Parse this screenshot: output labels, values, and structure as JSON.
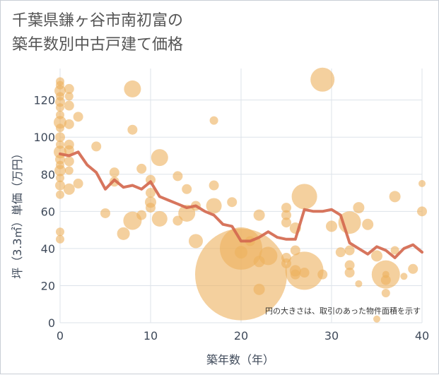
{
  "title_lines": [
    "千葉県鎌ヶ谷市南初富の",
    "築年数別中古戸建て価格"
  ],
  "note": "円の大きさは、取引のあった物件面積を示す",
  "chart_data": {
    "type": "scatter",
    "xlabel": "築年数（年）",
    "ylabel": "坪（3.3㎡）単価（万円）",
    "xlim": [
      0,
      40
    ],
    "ylim": [
      0,
      137
    ],
    "xticks": [
      0,
      10,
      20,
      30,
      40
    ],
    "yticks": [
      0,
      20,
      40,
      60,
      80,
      100,
      120
    ],
    "grid": true,
    "size_encoding": "物件面積",
    "series": [
      {
        "kind": "bubbles",
        "points": [
          {
            "x": 0,
            "y": 130,
            "s": 6
          },
          {
            "x": 0,
            "y": 128,
            "s": 6
          },
          {
            "x": 0,
            "y": 125,
            "s": 8
          },
          {
            "x": 0,
            "y": 122,
            "s": 6
          },
          {
            "x": 0,
            "y": 119,
            "s": 7
          },
          {
            "x": 0,
            "y": 116,
            "s": 6
          },
          {
            "x": 0,
            "y": 112,
            "s": 6
          },
          {
            "x": 0,
            "y": 108,
            "s": 9
          },
          {
            "x": 0,
            "y": 105,
            "s": 6
          },
          {
            "x": 0,
            "y": 100,
            "s": 7
          },
          {
            "x": 0,
            "y": 96,
            "s": 6
          },
          {
            "x": 0,
            "y": 92,
            "s": 9
          },
          {
            "x": 0,
            "y": 88,
            "s": 7
          },
          {
            "x": 0,
            "y": 85,
            "s": 6
          },
          {
            "x": 0,
            "y": 82,
            "s": 8
          },
          {
            "x": 0,
            "y": 78,
            "s": 6
          },
          {
            "x": 0,
            "y": 74,
            "s": 7
          },
          {
            "x": 0,
            "y": 69,
            "s": 6
          },
          {
            "x": 0,
            "y": 49,
            "s": 6
          },
          {
            "x": 0,
            "y": 45,
            "s": 6
          },
          {
            "x": 1,
            "y": 126,
            "s": 7
          },
          {
            "x": 1,
            "y": 122,
            "s": 6
          },
          {
            "x": 1,
            "y": 117,
            "s": 7
          },
          {
            "x": 1,
            "y": 107,
            "s": 7
          },
          {
            "x": 1,
            "y": 96,
            "s": 7
          },
          {
            "x": 1,
            "y": 93,
            "s": 7
          },
          {
            "x": 1,
            "y": 87,
            "s": 7
          },
          {
            "x": 1,
            "y": 82,
            "s": 6
          },
          {
            "x": 1,
            "y": 72,
            "s": 8
          },
          {
            "x": 2,
            "y": 111,
            "s": 7
          },
          {
            "x": 2,
            "y": 75,
            "s": 7
          },
          {
            "x": 4,
            "y": 95,
            "s": 7
          },
          {
            "x": 5,
            "y": 59,
            "s": 7
          },
          {
            "x": 6,
            "y": 81,
            "s": 7
          },
          {
            "x": 6,
            "y": 76,
            "s": 7
          },
          {
            "x": 7,
            "y": 48,
            "s": 9
          },
          {
            "x": 8,
            "y": 126,
            "s": 12
          },
          {
            "x": 8,
            "y": 104,
            "s": 7
          },
          {
            "x": 8,
            "y": 55,
            "s": 13
          },
          {
            "x": 9,
            "y": 83,
            "s": 7
          },
          {
            "x": 9,
            "y": 58,
            "s": 7
          },
          {
            "x": 10,
            "y": 77,
            "s": 7
          },
          {
            "x": 10,
            "y": 70,
            "s": 7
          },
          {
            "x": 10,
            "y": 65,
            "s": 8
          },
          {
            "x": 10,
            "y": 62,
            "s": 7
          },
          {
            "x": 11,
            "y": 89,
            "s": 12
          },
          {
            "x": 11,
            "y": 56,
            "s": 11
          },
          {
            "x": 13,
            "y": 79,
            "s": 7
          },
          {
            "x": 13,
            "y": 55,
            "s": 7
          },
          {
            "x": 14,
            "y": 72,
            "s": 7
          },
          {
            "x": 14,
            "y": 59,
            "s": 12
          },
          {
            "x": 15,
            "y": 63,
            "s": 7
          },
          {
            "x": 15,
            "y": 44,
            "s": 10
          },
          {
            "x": 17,
            "y": 109,
            "s": 6
          },
          {
            "x": 17,
            "y": 74,
            "s": 7
          },
          {
            "x": 17,
            "y": 63,
            "s": 11
          },
          {
            "x": 19,
            "y": 65,
            "s": 7
          },
          {
            "x": 20,
            "y": 26,
            "s": 65
          },
          {
            "x": 20,
            "y": 40,
            "s": 30
          },
          {
            "x": 20,
            "y": 38,
            "s": 9
          },
          {
            "x": 21,
            "y": 44,
            "s": 7
          },
          {
            "x": 22,
            "y": 58,
            "s": 8
          },
          {
            "x": 22,
            "y": 33,
            "s": 8
          },
          {
            "x": 22,
            "y": 18,
            "s": 8
          },
          {
            "x": 23,
            "y": 36,
            "s": 13
          },
          {
            "x": 25,
            "y": 62,
            "s": 7
          },
          {
            "x": 25,
            "y": 58,
            "s": 7
          },
          {
            "x": 25,
            "y": 54,
            "s": 7
          },
          {
            "x": 25,
            "y": 35,
            "s": 7
          },
          {
            "x": 25,
            "y": 32,
            "s": 7
          },
          {
            "x": 26,
            "y": 51,
            "s": 8
          },
          {
            "x": 26,
            "y": 39,
            "s": 7
          },
          {
            "x": 26,
            "y": 28,
            "s": 8
          },
          {
            "x": 26,
            "y": 26,
            "s": 7
          },
          {
            "x": 27,
            "y": 68,
            "s": 18
          },
          {
            "x": 27,
            "y": 28,
            "s": 27
          },
          {
            "x": 27,
            "y": 27,
            "s": 7
          },
          {
            "x": 29,
            "y": 131,
            "s": 17
          },
          {
            "x": 29,
            "y": 26,
            "s": 7
          },
          {
            "x": 30,
            "y": 52,
            "s": 8
          },
          {
            "x": 31,
            "y": 38,
            "s": 7
          },
          {
            "x": 32,
            "y": 54,
            "s": 16
          },
          {
            "x": 32,
            "y": 39,
            "s": 7
          },
          {
            "x": 32,
            "y": 31,
            "s": 7
          },
          {
            "x": 32,
            "y": 27,
            "s": 7
          },
          {
            "x": 33,
            "y": 62,
            "s": 8
          },
          {
            "x": 33,
            "y": 21,
            "s": 5
          },
          {
            "x": 34,
            "y": 53,
            "s": 8
          },
          {
            "x": 35,
            "y": 36,
            "s": 8
          },
          {
            "x": 35,
            "y": 2,
            "s": 5
          },
          {
            "x": 36,
            "y": 26,
            "s": 20
          },
          {
            "x": 36,
            "y": 26,
            "s": 5
          },
          {
            "x": 36,
            "y": 23,
            "s": 7
          },
          {
            "x": 36,
            "y": 16,
            "s": 6
          },
          {
            "x": 37,
            "y": 68,
            "s": 8
          },
          {
            "x": 37,
            "y": 39,
            "s": 6
          },
          {
            "x": 39,
            "y": 29,
            "s": 7
          },
          {
            "x": 38,
            "y": 25,
            "s": 5
          },
          {
            "x": 40,
            "y": 75,
            "s": 5
          },
          {
            "x": 40,
            "y": 60,
            "s": 7
          }
        ]
      },
      {
        "kind": "line",
        "points": [
          {
            "x": 0,
            "y": 91
          },
          {
            "x": 1,
            "y": 90
          },
          {
            "x": 2,
            "y": 92
          },
          {
            "x": 3,
            "y": 85
          },
          {
            "x": 4,
            "y": 81
          },
          {
            "x": 5,
            "y": 72
          },
          {
            "x": 6,
            "y": 77
          },
          {
            "x": 7,
            "y": 73
          },
          {
            "x": 8,
            "y": 74
          },
          {
            "x": 9,
            "y": 72
          },
          {
            "x": 10,
            "y": 76
          },
          {
            "x": 11,
            "y": 68
          },
          {
            "x": 12,
            "y": 66
          },
          {
            "x": 13,
            "y": 64
          },
          {
            "x": 14,
            "y": 62
          },
          {
            "x": 15,
            "y": 63
          },
          {
            "x": 16,
            "y": 60
          },
          {
            "x": 17,
            "y": 58
          },
          {
            "x": 18,
            "y": 53
          },
          {
            "x": 19,
            "y": 52
          },
          {
            "x": 20,
            "y": 44
          },
          {
            "x": 21,
            "y": 44
          },
          {
            "x": 22,
            "y": 46
          },
          {
            "x": 23,
            "y": 49
          },
          {
            "x": 24,
            "y": 46
          },
          {
            "x": 25,
            "y": 45
          },
          {
            "x": 26,
            "y": 45
          },
          {
            "x": 27,
            "y": 61
          },
          {
            "x": 28,
            "y": 60
          },
          {
            "x": 29,
            "y": 60
          },
          {
            "x": 30,
            "y": 61
          },
          {
            "x": 31,
            "y": 58
          },
          {
            "x": 32,
            "y": 43
          },
          {
            "x": 33,
            "y": 40
          },
          {
            "x": 34,
            "y": 37
          },
          {
            "x": 35,
            "y": 41
          },
          {
            "x": 36,
            "y": 39
          },
          {
            "x": 37,
            "y": 35
          },
          {
            "x": 38,
            "y": 40
          },
          {
            "x": 39,
            "y": 42
          },
          {
            "x": 40,
            "y": 38
          }
        ]
      }
    ]
  }
}
